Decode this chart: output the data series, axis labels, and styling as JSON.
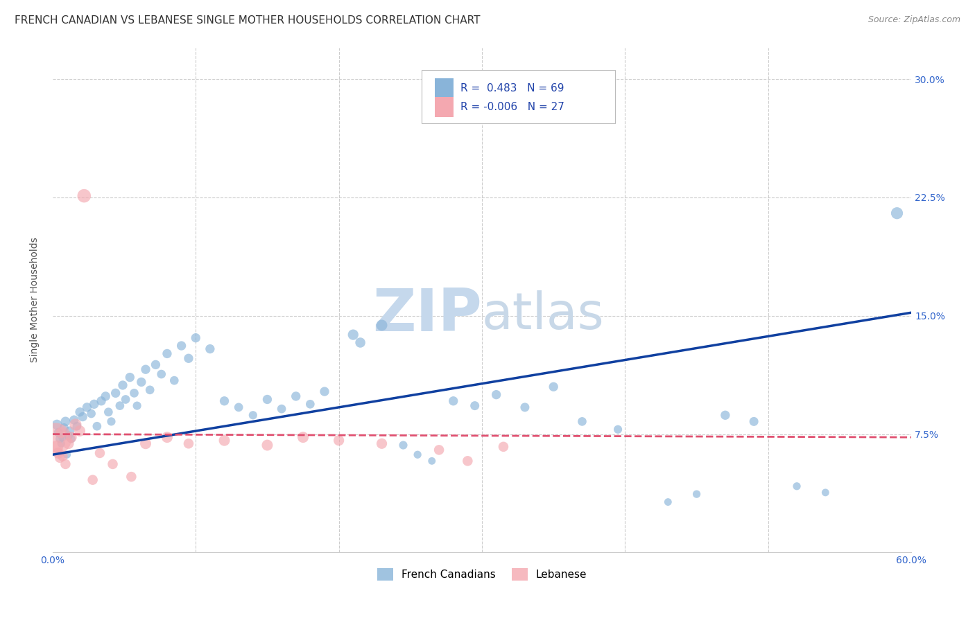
{
  "title": "FRENCH CANADIAN VS LEBANESE SINGLE MOTHER HOUSEHOLDS CORRELATION CHART",
  "source": "Source: ZipAtlas.com",
  "ylabel": "Single Mother Households",
  "xlim": [
    0.0,
    0.6
  ],
  "ylim": [
    0.0,
    0.32
  ],
  "xticks": [
    0.0,
    0.1,
    0.2,
    0.3,
    0.4,
    0.5,
    0.6
  ],
  "xticklabels": [
    "0.0%",
    "",
    "",
    "",
    "",
    "",
    "60.0%"
  ],
  "ytick_positions": [
    0.075,
    0.15,
    0.225,
    0.3
  ],
  "ytick_labels": [
    "7.5%",
    "15.0%",
    "22.5%",
    "30.0%"
  ],
  "blue_color": "#89b4d9",
  "pink_color": "#f4a8b0",
  "blue_line_color": "#1040a0",
  "pink_line_color": "#e05070",
  "legend_blue_R": "0.483",
  "legend_blue_N": "69",
  "legend_pink_R": "-0.006",
  "legend_pink_N": "27",
  "watermark_zip": "ZIP",
  "watermark_atlas": "atlas",
  "blue_points": [
    [
      0.003,
      0.081
    ],
    [
      0.004,
      0.076
    ],
    [
      0.005,
      0.072
    ],
    [
      0.006,
      0.069
    ],
    [
      0.007,
      0.073
    ],
    [
      0.008,
      0.079
    ],
    [
      0.009,
      0.083
    ],
    [
      0.01,
      0.062
    ],
    [
      0.011,
      0.074
    ],
    [
      0.012,
      0.077
    ],
    [
      0.013,
      0.072
    ],
    [
      0.015,
      0.084
    ],
    [
      0.017,
      0.08
    ],
    [
      0.019,
      0.089
    ],
    [
      0.021,
      0.086
    ],
    [
      0.024,
      0.092
    ],
    [
      0.027,
      0.088
    ],
    [
      0.029,
      0.094
    ],
    [
      0.031,
      0.08
    ],
    [
      0.034,
      0.096
    ],
    [
      0.037,
      0.099
    ],
    [
      0.039,
      0.089
    ],
    [
      0.041,
      0.083
    ],
    [
      0.044,
      0.101
    ],
    [
      0.047,
      0.093
    ],
    [
      0.049,
      0.106
    ],
    [
      0.051,
      0.097
    ],
    [
      0.054,
      0.111
    ],
    [
      0.057,
      0.101
    ],
    [
      0.059,
      0.093
    ],
    [
      0.062,
      0.108
    ],
    [
      0.065,
      0.116
    ],
    [
      0.068,
      0.103
    ],
    [
      0.072,
      0.119
    ],
    [
      0.076,
      0.113
    ],
    [
      0.08,
      0.126
    ],
    [
      0.085,
      0.109
    ],
    [
      0.09,
      0.131
    ],
    [
      0.095,
      0.123
    ],
    [
      0.1,
      0.136
    ],
    [
      0.11,
      0.129
    ],
    [
      0.12,
      0.096
    ],
    [
      0.13,
      0.092
    ],
    [
      0.14,
      0.087
    ],
    [
      0.15,
      0.097
    ],
    [
      0.16,
      0.091
    ],
    [
      0.17,
      0.099
    ],
    [
      0.18,
      0.094
    ],
    [
      0.19,
      0.102
    ],
    [
      0.21,
      0.138
    ],
    [
      0.215,
      0.133
    ],
    [
      0.23,
      0.144
    ],
    [
      0.245,
      0.068
    ],
    [
      0.255,
      0.062
    ],
    [
      0.265,
      0.058
    ],
    [
      0.28,
      0.096
    ],
    [
      0.295,
      0.093
    ],
    [
      0.31,
      0.1
    ],
    [
      0.33,
      0.092
    ],
    [
      0.35,
      0.105
    ],
    [
      0.37,
      0.083
    ],
    [
      0.395,
      0.078
    ],
    [
      0.43,
      0.032
    ],
    [
      0.45,
      0.037
    ],
    [
      0.47,
      0.087
    ],
    [
      0.49,
      0.083
    ],
    [
      0.52,
      0.042
    ],
    [
      0.54,
      0.038
    ],
    [
      0.59,
      0.215
    ]
  ],
  "pink_points": [
    [
      0.002,
      0.072
    ],
    [
      0.003,
      0.067
    ],
    [
      0.004,
      0.063
    ],
    [
      0.005,
      0.06
    ],
    [
      0.006,
      0.076
    ],
    [
      0.007,
      0.061
    ],
    [
      0.009,
      0.056
    ],
    [
      0.011,
      0.069
    ],
    [
      0.013,
      0.073
    ],
    [
      0.016,
      0.081
    ],
    [
      0.019,
      0.077
    ],
    [
      0.022,
      0.226
    ],
    [
      0.028,
      0.046
    ],
    [
      0.033,
      0.063
    ],
    [
      0.042,
      0.056
    ],
    [
      0.055,
      0.048
    ],
    [
      0.065,
      0.069
    ],
    [
      0.08,
      0.073
    ],
    [
      0.095,
      0.069
    ],
    [
      0.12,
      0.071
    ],
    [
      0.15,
      0.068
    ],
    [
      0.175,
      0.073
    ],
    [
      0.2,
      0.071
    ],
    [
      0.23,
      0.069
    ],
    [
      0.27,
      0.065
    ],
    [
      0.29,
      0.058
    ],
    [
      0.315,
      0.067
    ]
  ],
  "blue_sizes": [
    50,
    40,
    35,
    30,
    35,
    40,
    45,
    30,
    38,
    42,
    35,
    42,
    38,
    42,
    42,
    42,
    38,
    42,
    38,
    42,
    42,
    38,
    35,
    42,
    38,
    42,
    38,
    42,
    38,
    35,
    42,
    42,
    38,
    42,
    38,
    42,
    38,
    42,
    42,
    42,
    42,
    42,
    38,
    35,
    42,
    38,
    42,
    38,
    42,
    55,
    50,
    60,
    35,
    30,
    28,
    42,
    40,
    42,
    40,
    42,
    38,
    35,
    28,
    30,
    42,
    40,
    30,
    28,
    70
  ],
  "pink_sizes": [
    500,
    80,
    60,
    50,
    60,
    50,
    50,
    60,
    60,
    70,
    60,
    90,
    50,
    50,
    50,
    50,
    60,
    60,
    50,
    60,
    60,
    60,
    55,
    55,
    50,
    50,
    50
  ],
  "blue_trendline": [
    [
      0.0,
      0.062
    ],
    [
      0.6,
      0.152
    ]
  ],
  "pink_trendline": [
    [
      0.0,
      0.075
    ],
    [
      0.6,
      0.073
    ]
  ],
  "grid_color": "#cccccc",
  "background_color": "#ffffff",
  "title_fontsize": 11,
  "axis_label_fontsize": 10,
  "tick_fontsize": 10,
  "watermark_color_zip": "#c5d8ec",
  "watermark_color_atlas": "#c8d8e8",
  "watermark_fontsize": 62
}
